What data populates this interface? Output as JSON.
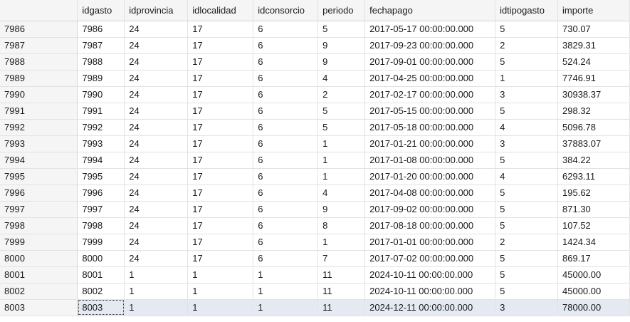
{
  "grid": {
    "columns": [
      "idgasto",
      "idprovincia",
      "idlocalidad",
      "idconsorcio",
      "periodo",
      "fechapago",
      "idtipogasto",
      "importe"
    ],
    "rows": [
      {
        "rownum": "7986",
        "cells": [
          "7986",
          "24",
          "17",
          "6",
          "5",
          "2017-05-17 00:00:00.000",
          "5",
          "730.07"
        ]
      },
      {
        "rownum": "7987",
        "cells": [
          "7987",
          "24",
          "17",
          "6",
          "9",
          "2017-09-23 00:00:00.000",
          "2",
          "3829.31"
        ]
      },
      {
        "rownum": "7988",
        "cells": [
          "7988",
          "24",
          "17",
          "6",
          "9",
          "2017-09-01 00:00:00.000",
          "5",
          "524.24"
        ]
      },
      {
        "rownum": "7989",
        "cells": [
          "7989",
          "24",
          "17",
          "6",
          "4",
          "2017-04-25 00:00:00.000",
          "1",
          "7746.91"
        ]
      },
      {
        "rownum": "7990",
        "cells": [
          "7990",
          "24",
          "17",
          "6",
          "2",
          "2017-02-17 00:00:00.000",
          "3",
          "30938.37"
        ]
      },
      {
        "rownum": "7991",
        "cells": [
          "7991",
          "24",
          "17",
          "6",
          "5",
          "2017-05-15 00:00:00.000",
          "5",
          "298.32"
        ]
      },
      {
        "rownum": "7992",
        "cells": [
          "7992",
          "24",
          "17",
          "6",
          "5",
          "2017-05-18 00:00:00.000",
          "4",
          "5096.78"
        ]
      },
      {
        "rownum": "7993",
        "cells": [
          "7993",
          "24",
          "17",
          "6",
          "1",
          "2017-01-21 00:00:00.000",
          "3",
          "37883.07"
        ]
      },
      {
        "rownum": "7994",
        "cells": [
          "7994",
          "24",
          "17",
          "6",
          "1",
          "2017-01-08 00:00:00.000",
          "5",
          "384.22"
        ]
      },
      {
        "rownum": "7995",
        "cells": [
          "7995",
          "24",
          "17",
          "6",
          "1",
          "2017-01-20 00:00:00.000",
          "4",
          "6293.11"
        ]
      },
      {
        "rownum": "7996",
        "cells": [
          "7996",
          "24",
          "17",
          "6",
          "4",
          "2017-04-08 00:00:00.000",
          "5",
          "195.62"
        ]
      },
      {
        "rownum": "7997",
        "cells": [
          "7997",
          "24",
          "17",
          "6",
          "9",
          "2017-09-02 00:00:00.000",
          "5",
          "871.30"
        ]
      },
      {
        "rownum": "7998",
        "cells": [
          "7998",
          "24",
          "17",
          "6",
          "8",
          "2017-08-18 00:00:00.000",
          "5",
          "107.52"
        ]
      },
      {
        "rownum": "7999",
        "cells": [
          "7999",
          "24",
          "17",
          "6",
          "1",
          "2017-01-01 00:00:00.000",
          "2",
          "1424.34"
        ]
      },
      {
        "rownum": "8000",
        "cells": [
          "8000",
          "24",
          "17",
          "6",
          "7",
          "2017-07-02 00:00:00.000",
          "5",
          "869.17"
        ]
      },
      {
        "rownum": "8001",
        "cells": [
          "8001",
          "1",
          "1",
          "1",
          "11",
          "2024-10-11 00:00:00.000",
          "5",
          "45000.00"
        ]
      },
      {
        "rownum": "8002",
        "cells": [
          "8002",
          "1",
          "1",
          "1",
          "11",
          "2024-10-11 00:00:00.000",
          "5",
          "45000.00"
        ]
      },
      {
        "rownum": "8003",
        "cells": [
          "8003",
          "1",
          "1",
          "1",
          "11",
          "2024-12-11 00:00:00.000",
          "3",
          "78000.00"
        ],
        "selected": true
      }
    ]
  }
}
